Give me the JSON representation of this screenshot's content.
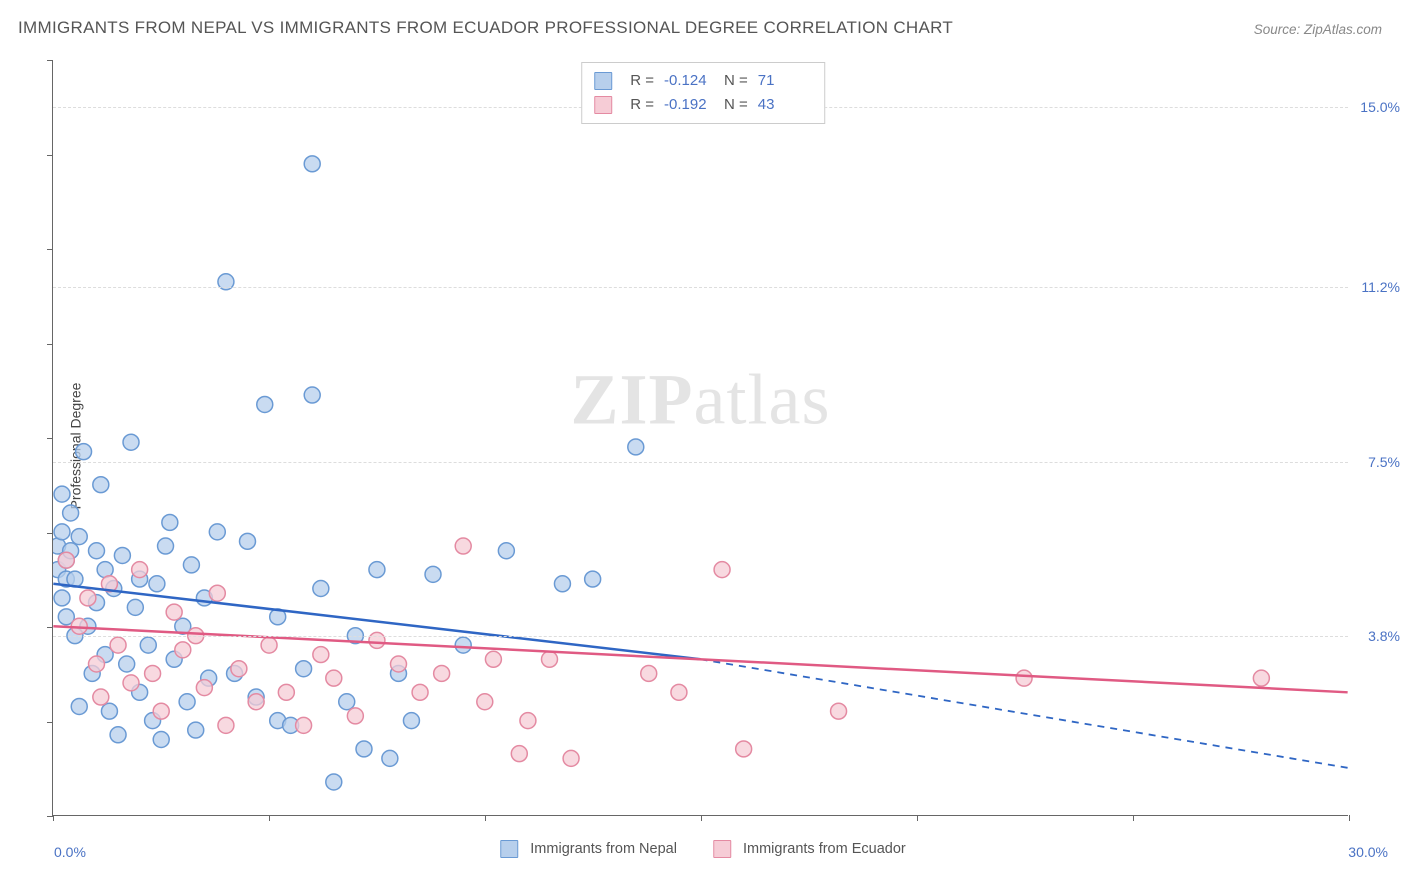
{
  "title": "IMMIGRANTS FROM NEPAL VS IMMIGRANTS FROM ECUADOR PROFESSIONAL DEGREE CORRELATION CHART",
  "source": "Source: ZipAtlas.com",
  "watermark_zip": "ZIP",
  "watermark_atlas": "atlas",
  "y_axis_title": "Professional Degree",
  "chart": {
    "type": "scatter",
    "xlim": [
      0,
      30
    ],
    "ylim": [
      0,
      16
    ],
    "x_origin_label": "0.0%",
    "x_max_label": "30.0%",
    "y_ticks": [
      {
        "value": 3.8,
        "label": "3.8%"
      },
      {
        "value": 7.5,
        "label": "7.5%"
      },
      {
        "value": 11.2,
        "label": "11.2%"
      },
      {
        "value": 15.0,
        "label": "15.0%"
      }
    ],
    "x_tick_positions": [
      0,
      5,
      10,
      15,
      20,
      25,
      30
    ],
    "y_minor_ticks": [
      0,
      2,
      4,
      6,
      8,
      10,
      12,
      14,
      16
    ],
    "background_color": "#ffffff",
    "grid_color": "#dddddd",
    "marker_radius": 8,
    "marker_stroke_width": 1.5,
    "series": [
      {
        "name": "Immigrants from Nepal",
        "fill": "#b7cfec",
        "stroke": "#6a9ad4",
        "line_color": "#2f66c4",
        "R": "-0.124",
        "N": "71",
        "regression": {
          "x1": 0,
          "y1": 4.9,
          "x2": 15,
          "y2": 3.3,
          "x3": 30,
          "y3": 1.0
        },
        "points": [
          [
            0.1,
            5.7
          ],
          [
            0.1,
            5.2
          ],
          [
            0.2,
            4.6
          ],
          [
            0.2,
            6.0
          ],
          [
            0.2,
            6.8
          ],
          [
            0.3,
            5.4
          ],
          [
            0.3,
            5.0
          ],
          [
            0.3,
            4.2
          ],
          [
            0.4,
            5.6
          ],
          [
            0.4,
            6.4
          ],
          [
            0.5,
            3.8
          ],
          [
            0.5,
            5.0
          ],
          [
            0.6,
            2.3
          ],
          [
            0.6,
            5.9
          ],
          [
            0.7,
            7.7
          ],
          [
            0.8,
            4.0
          ],
          [
            0.9,
            3.0
          ],
          [
            1.0,
            5.6
          ],
          [
            1.0,
            4.5
          ],
          [
            1.1,
            7.0
          ],
          [
            1.2,
            3.4
          ],
          [
            1.2,
            5.2
          ],
          [
            1.3,
            2.2
          ],
          [
            1.4,
            4.8
          ],
          [
            1.5,
            1.7
          ],
          [
            1.6,
            5.5
          ],
          [
            1.7,
            3.2
          ],
          [
            1.8,
            7.9
          ],
          [
            1.9,
            4.4
          ],
          [
            2.0,
            2.6
          ],
          [
            2.0,
            5.0
          ],
          [
            2.2,
            3.6
          ],
          [
            2.3,
            2.0
          ],
          [
            2.4,
            4.9
          ],
          [
            2.5,
            1.6
          ],
          [
            2.6,
            5.7
          ],
          [
            2.7,
            6.2
          ],
          [
            2.8,
            3.3
          ],
          [
            3.0,
            4.0
          ],
          [
            3.1,
            2.4
          ],
          [
            3.2,
            5.3
          ],
          [
            3.3,
            1.8
          ],
          [
            3.5,
            4.6
          ],
          [
            3.6,
            2.9
          ],
          [
            3.8,
            6.0
          ],
          [
            4.0,
            11.3
          ],
          [
            4.2,
            3.0
          ],
          [
            4.5,
            5.8
          ],
          [
            4.7,
            2.5
          ],
          [
            4.9,
            8.7
          ],
          [
            5.2,
            4.2
          ],
          [
            5.2,
            2.0
          ],
          [
            5.5,
            1.9
          ],
          [
            5.8,
            3.1
          ],
          [
            6.0,
            8.9
          ],
          [
            6.0,
            13.8
          ],
          [
            6.2,
            4.8
          ],
          [
            6.5,
            0.7
          ],
          [
            6.8,
            2.4
          ],
          [
            7.0,
            3.8
          ],
          [
            7.2,
            1.4
          ],
          [
            7.5,
            5.2
          ],
          [
            7.8,
            1.2
          ],
          [
            8.0,
            3.0
          ],
          [
            8.3,
            2.0
          ],
          [
            8.8,
            5.1
          ],
          [
            9.5,
            3.6
          ],
          [
            10.5,
            5.6
          ],
          [
            11.8,
            4.9
          ],
          [
            12.5,
            5.0
          ],
          [
            13.5,
            7.8
          ]
        ]
      },
      {
        "name": "Immigrants from Ecuador",
        "fill": "#f6ccd6",
        "stroke": "#e48aa2",
        "line_color": "#e05a83",
        "R": "-0.192",
        "N": "43",
        "regression": {
          "x1": 0,
          "y1": 4.0,
          "x2": 30,
          "y2": 2.6
        },
        "points": [
          [
            0.3,
            5.4
          ],
          [
            0.6,
            4.0
          ],
          [
            0.8,
            4.6
          ],
          [
            1.0,
            3.2
          ],
          [
            1.1,
            2.5
          ],
          [
            1.3,
            4.9
          ],
          [
            1.5,
            3.6
          ],
          [
            1.8,
            2.8
          ],
          [
            2.0,
            5.2
          ],
          [
            2.3,
            3.0
          ],
          [
            2.5,
            2.2
          ],
          [
            2.8,
            4.3
          ],
          [
            3.0,
            3.5
          ],
          [
            3.3,
            3.8
          ],
          [
            3.5,
            2.7
          ],
          [
            3.8,
            4.7
          ],
          [
            4.0,
            1.9
          ],
          [
            4.3,
            3.1
          ],
          [
            4.7,
            2.4
          ],
          [
            5.0,
            3.6
          ],
          [
            5.4,
            2.6
          ],
          [
            5.8,
            1.9
          ],
          [
            6.2,
            3.4
          ],
          [
            6.5,
            2.9
          ],
          [
            7.0,
            2.1
          ],
          [
            7.5,
            3.7
          ],
          [
            8.0,
            3.2
          ],
          [
            8.5,
            2.6
          ],
          [
            9.0,
            3.0
          ],
          [
            9.5,
            5.7
          ],
          [
            10.0,
            2.4
          ],
          [
            10.2,
            3.3
          ],
          [
            10.8,
            1.3
          ],
          [
            11.0,
            2.0
          ],
          [
            11.5,
            3.3
          ],
          [
            12.0,
            1.2
          ],
          [
            13.8,
            3.0
          ],
          [
            14.5,
            2.6
          ],
          [
            15.5,
            5.2
          ],
          [
            16.0,
            1.4
          ],
          [
            18.2,
            2.2
          ],
          [
            22.5,
            2.9
          ],
          [
            28.0,
            2.9
          ]
        ]
      }
    ]
  },
  "legend": {
    "series1_label": "Immigrants from Nepal",
    "series2_label": "Immigrants from Ecuador",
    "r_prefix": "R =",
    "n_prefix": "N ="
  }
}
